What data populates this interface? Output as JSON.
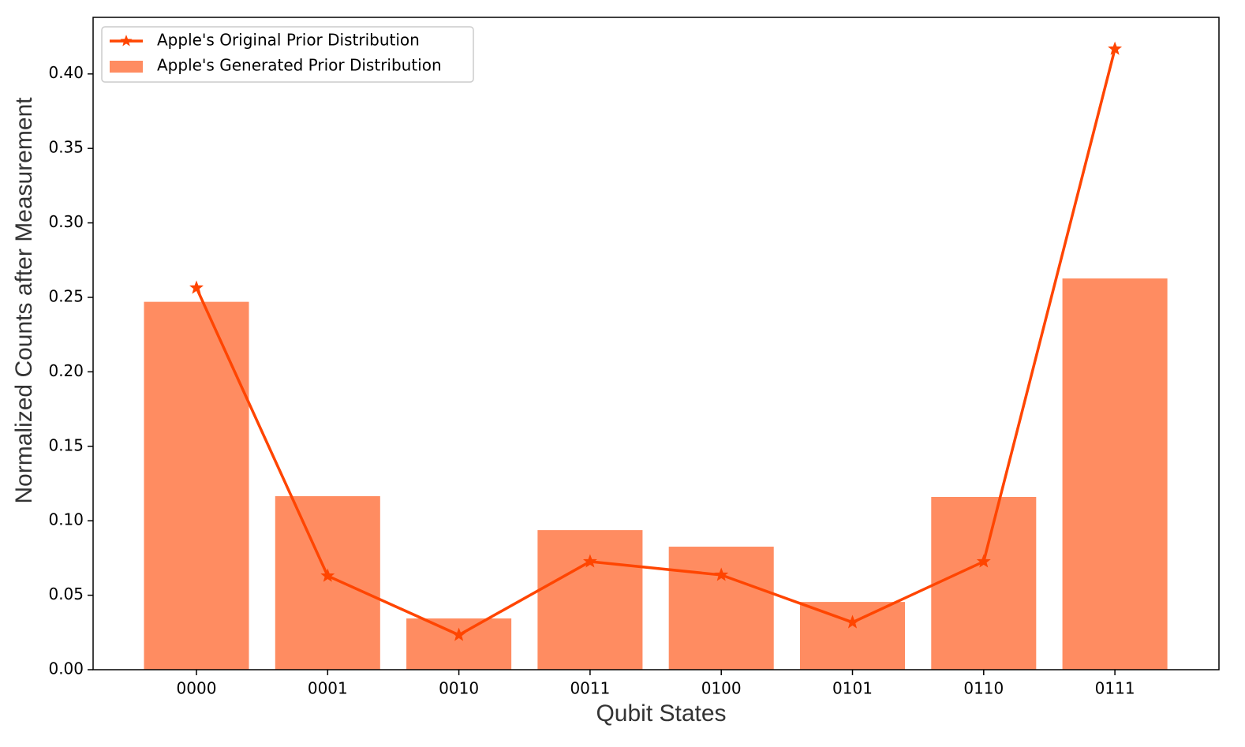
{
  "chart_data": {
    "type": "bar",
    "x_label": "Qubit States",
    "y_label": "Normalized Counts after Measurement",
    "categories": [
      "0000",
      "0001",
      "0010",
      "0011",
      "0100",
      "0101",
      "0110",
      "0111"
    ],
    "series": [
      {
        "name": "Apple's Original Prior Distribution",
        "type": "line",
        "marker": "star",
        "color": "#ff4500",
        "values": [
          0.2564,
          0.063,
          0.0233,
          0.0726,
          0.0636,
          0.0318,
          0.0726,
          0.4168
        ]
      },
      {
        "name": "Apple's Generated Prior Distribution",
        "type": "bar",
        "color": "#ff8c61",
        "values": [
          0.247,
          0.1165,
          0.0344,
          0.0937,
          0.0826,
          0.0455,
          0.116,
          0.2627
        ]
      }
    ],
    "ylim": [
      0,
      0.438
    ],
    "yticks": [
      {
        "value": 0,
        "label": "0.00"
      },
      {
        "value": 0.05,
        "label": "0.05"
      },
      {
        "value": 0.1,
        "label": "0.10"
      },
      {
        "value": 0.15,
        "label": "0.15"
      },
      {
        "value": 0.2,
        "label": "0.20"
      },
      {
        "value": 0.25,
        "label": "0.25"
      },
      {
        "value": 0.3,
        "label": "0.30"
      },
      {
        "value": 0.35,
        "label": "0.35"
      },
      {
        "value": 0.4,
        "label": "0.40"
      }
    ],
    "legend": "upper left",
    "grid": false
  }
}
